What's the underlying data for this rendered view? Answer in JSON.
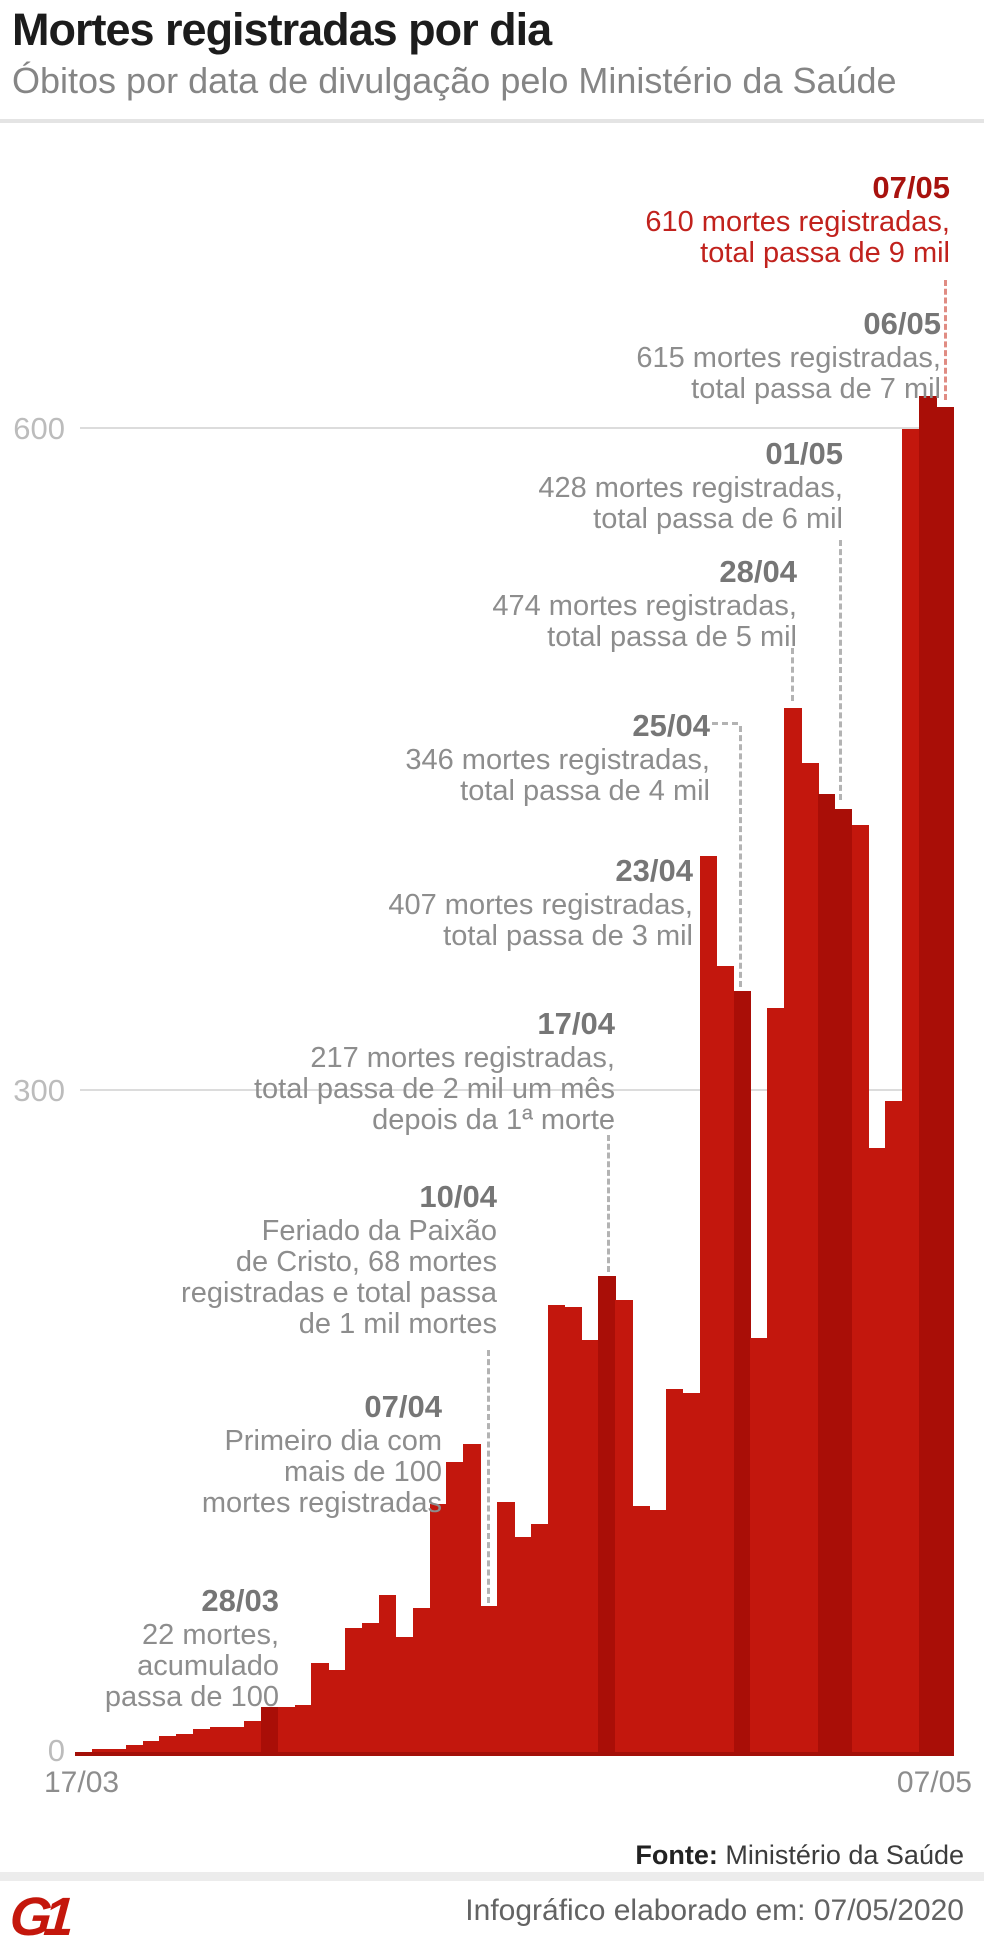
{
  "header": {
    "title": "Mortes registradas por dia",
    "subtitle": "Óbitos por data de divulgação pelo Ministério da Saúde"
  },
  "chart_data": {
    "type": "bar",
    "title": "Mortes registradas por dia",
    "xlabel": "",
    "ylabel": "mortes registradas",
    "ylim": [
      0,
      660
    ],
    "grid": "horizontal",
    "legend": "none",
    "y_ticks": [
      "0",
      "300",
      "600"
    ],
    "x_tick_first": "17/03",
    "x_tick_last": "07/05",
    "categories": [
      "17/03",
      "18/03",
      "19/03",
      "20/03",
      "21/03",
      "22/03",
      "23/03",
      "24/03",
      "25/03",
      "26/03",
      "27/03",
      "28/03",
      "29/03",
      "30/03",
      "31/03",
      "01/04",
      "02/04",
      "03/04",
      "04/04",
      "05/04",
      "06/04",
      "07/04",
      "08/04",
      "09/04",
      "10/04",
      "11/04",
      "12/04",
      "13/04",
      "14/04",
      "15/04",
      "16/04",
      "17/04",
      "18/04",
      "19/04",
      "20/04",
      "21/04",
      "22/04",
      "23/04",
      "24/04",
      "25/04",
      "26/04",
      "27/04",
      "28/04",
      "29/04",
      "30/04",
      "01/05",
      "02/05",
      "03/05",
      "04/05",
      "05/05",
      "06/05",
      "07/05"
    ],
    "values": [
      2,
      3,
      3,
      5,
      7,
      9,
      10,
      12,
      13,
      13,
      16,
      22,
      22,
      23,
      42,
      39,
      58,
      60,
      73,
      54,
      67,
      114,
      133,
      141,
      68,
      115,
      99,
      105,
      204,
      203,
      188,
      217,
      206,
      113,
      111,
      166,
      164,
      407,
      357,
      346,
      189,
      338,
      474,
      449,
      435,
      428,
      421,
      275,
      296,
      600,
      615,
      610
    ],
    "colors": {
      "bar": "#c3170d",
      "bar_dark": "#a90e07",
      "highlight_date": "#a8120e",
      "highlight_body": "#c1221d",
      "annotation_gray": "#8d8d8d",
      "gridline": "#dcdcdc"
    },
    "dark_bar_indices": [
      11,
      31,
      39,
      44,
      45,
      50,
      51
    ],
    "annotations": [
      {
        "date": "07/05",
        "lines": [
          "610 mortes registradas,",
          "total passa de 9 mil"
        ],
        "highlight": true
      },
      {
        "date": "06/05",
        "lines": [
          "615 mortes registradas,",
          "total passa de 7 mil"
        ],
        "highlight": false
      },
      {
        "date": "01/05",
        "lines": [
          "428 mortes registradas,",
          "total passa de 6 mil"
        ],
        "highlight": false
      },
      {
        "date": "28/04",
        "lines": [
          "474 mortes registradas,",
          "total passa de 5 mil"
        ],
        "highlight": false
      },
      {
        "date": "25/04",
        "lines": [
          "346 mortes registradas,",
          "total passa de 4 mil"
        ],
        "highlight": false
      },
      {
        "date": "23/04",
        "lines": [
          "407 mortes registradas,",
          "total passa de 3 mil"
        ],
        "highlight": false
      },
      {
        "date": "17/04",
        "lines": [
          "217 mortes registradas,",
          "total passa de 2 mil um mês",
          "depois da 1ª morte"
        ],
        "highlight": false
      },
      {
        "date": "10/04",
        "lines": [
          "Feriado da Paixão",
          "de Cristo, 68 mortes",
          "registradas e total passa",
          "de 1 mil mortes"
        ],
        "highlight": false
      },
      {
        "date": "07/04",
        "lines": [
          "Primeiro dia com",
          "mais de 100",
          "mortes registradas"
        ],
        "highlight": false
      },
      {
        "date": "28/03",
        "lines": [
          "22 mortes,",
          "acumulado",
          "passa de 100"
        ],
        "highlight": false
      }
    ]
  },
  "footer": {
    "source_label": "Fonte:",
    "source_text": " Ministério da Saúde",
    "credit": "Infográfico elaborado em: 07/05/2020",
    "logo_text": "G1"
  }
}
